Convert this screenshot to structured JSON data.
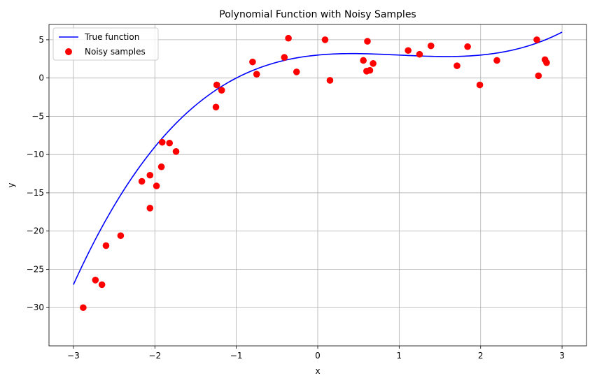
{
  "chart_data": {
    "type": "scatter",
    "title": "Polynomial Function with Noisy Samples",
    "xlabel": "x",
    "ylabel": "y",
    "xlim": [
      -3.3,
      3.3
    ],
    "ylim": [
      -35,
      7
    ],
    "x_ticks": [
      -3,
      -2,
      -1,
      0,
      1,
      2,
      3
    ],
    "y_ticks": [
      5,
      0,
      -5,
      -10,
      -15,
      -20,
      -25,
      -30
    ],
    "grid": true,
    "legend_position": "top-left",
    "series": [
      {
        "name": "True function",
        "kind": "line",
        "color": "#0000ff",
        "formula": "y = 0.5x^3 - 1.5x^2 + x + 3",
        "x_range": [
          -3,
          3
        ]
      },
      {
        "name": "Noisy samples",
        "kind": "scatter",
        "color": "#ff0000",
        "points": [
          [
            -2.88,
            -30.0
          ],
          [
            -2.73,
            -26.4
          ],
          [
            -2.65,
            -27.0
          ],
          [
            -2.6,
            -21.9
          ],
          [
            -2.42,
            -20.6
          ],
          [
            -2.16,
            -13.5
          ],
          [
            -2.06,
            -12.7
          ],
          [
            -2.06,
            -17.0
          ],
          [
            -1.98,
            -14.1
          ],
          [
            -1.92,
            -11.6
          ],
          [
            -1.91,
            -8.4
          ],
          [
            -1.82,
            -8.5
          ],
          [
            -1.74,
            -9.6
          ],
          [
            -1.25,
            -3.8
          ],
          [
            -1.24,
            -0.9
          ],
          [
            -1.18,
            -1.6
          ],
          [
            -0.8,
            2.1
          ],
          [
            -0.75,
            0.5
          ],
          [
            -0.41,
            2.7
          ],
          [
            -0.36,
            5.2
          ],
          [
            -0.26,
            0.8
          ],
          [
            0.09,
            5.0
          ],
          [
            0.15,
            -0.3
          ],
          [
            0.56,
            2.3
          ],
          [
            0.6,
            0.9
          ],
          [
            0.61,
            4.8
          ],
          [
            0.64,
            1.0
          ],
          [
            0.68,
            1.9
          ],
          [
            1.11,
            3.6
          ],
          [
            1.25,
            3.1
          ],
          [
            1.39,
            4.2
          ],
          [
            1.71,
            1.6
          ],
          [
            1.84,
            4.1
          ],
          [
            1.99,
            -0.9
          ],
          [
            2.2,
            2.3
          ],
          [
            2.69,
            5.0
          ],
          [
            2.71,
            0.3
          ],
          [
            2.79,
            2.4
          ],
          [
            2.81,
            2.0
          ]
        ]
      }
    ]
  }
}
